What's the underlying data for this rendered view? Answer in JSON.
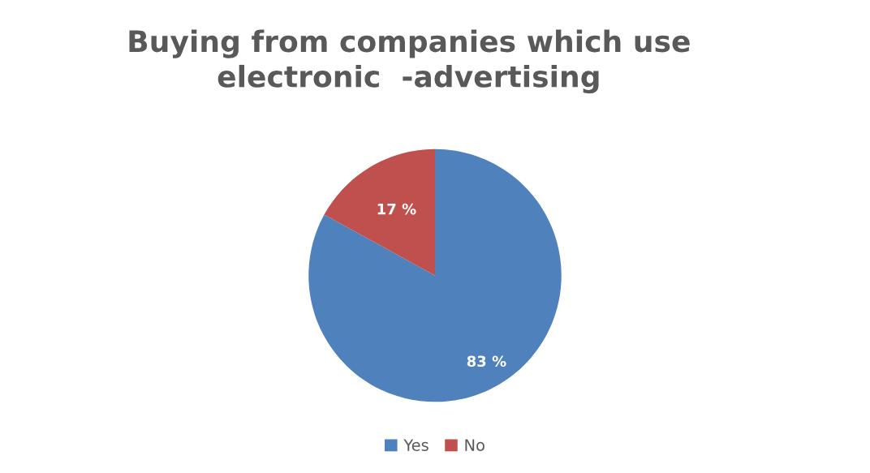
{
  "chart_data": {
    "type": "pie",
    "title": "Buying from companies which use\nelectronic  -advertising",
    "categories": [
      "Yes",
      "No"
    ],
    "values": [
      83,
      17
    ],
    "colors": [
      "#4f81bd",
      "#c0504d"
    ],
    "value_labels": [
      "83 %",
      "17 %"
    ],
    "legend": "bottom"
  }
}
